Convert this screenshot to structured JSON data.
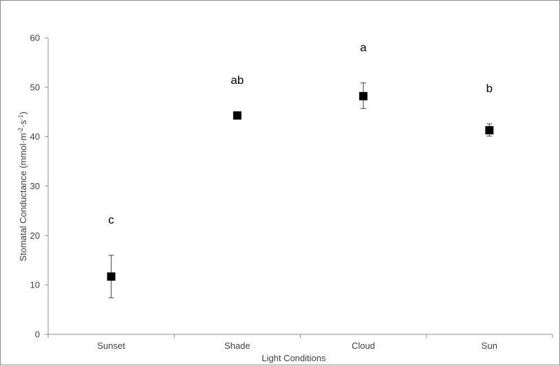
{
  "chart_data": {
    "type": "scatter",
    "categories": [
      "Sunset",
      "Shade",
      "Cloud",
      "Sun"
    ],
    "values": [
      11.7,
      44.3,
      48.2,
      41.3
    ],
    "error_low": [
      7.4,
      44.3,
      45.7,
      40.1
    ],
    "error_high": [
      16.0,
      44.3,
      50.9,
      42.6
    ],
    "significance_letters": [
      "c",
      "ab",
      "a",
      "b"
    ],
    "xlabel": "Light Conditions",
    "ylabel_parts": {
      "base": "Stomatal Conductance (mmol·m",
      "sup1": "-2",
      "mid": "·s",
      "sup2": "-1",
      "end": ")"
    },
    "ylim": [
      0,
      60
    ],
    "yticks": [
      "0",
      "10",
      "20",
      "30",
      "40",
      "50",
      "60"
    ],
    "grid": false,
    "marker_color": "#000000",
    "axis_color": "#8c8c8c"
  }
}
